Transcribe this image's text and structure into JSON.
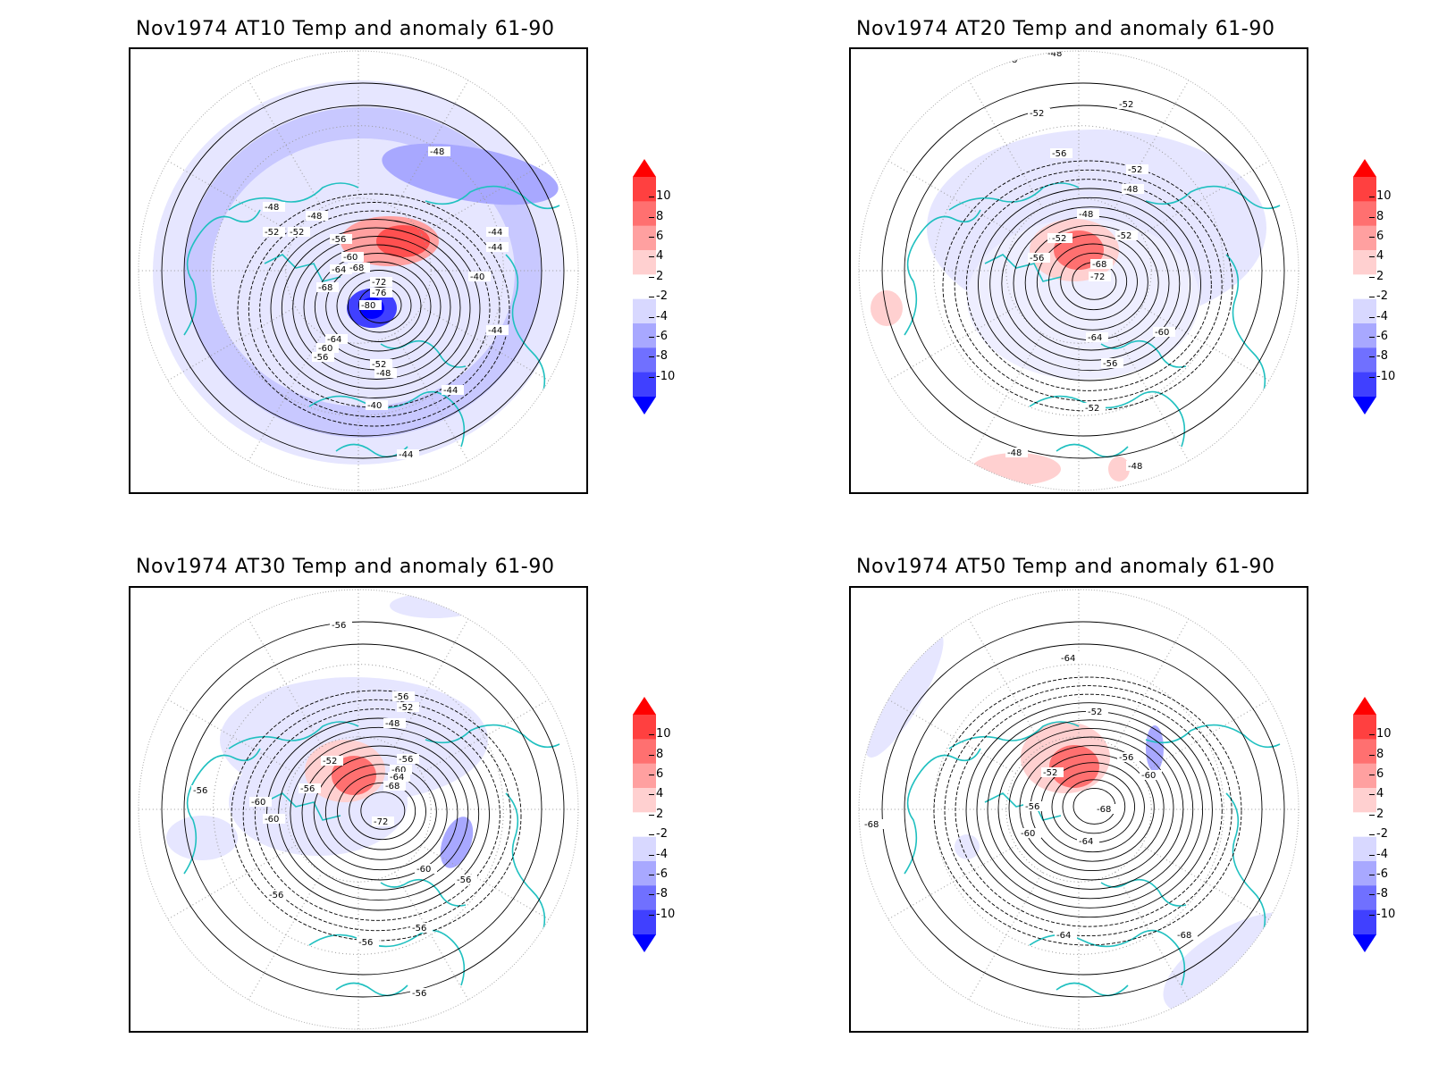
{
  "figure": {
    "panels": [
      {
        "id": "at10",
        "title": "Nov1974 AT10 Temp and anomaly 61-90",
        "contour_labels": [
          "-48",
          "-48",
          "-52",
          "-48",
          "-52",
          "-56",
          "-60",
          "-64",
          "-68",
          "-68",
          "-72",
          "-76",
          "-80",
          "-64",
          "-60",
          "-56",
          "-52",
          "-48",
          "-44",
          "-44",
          "-40",
          "-44",
          "-44",
          "-40",
          "-44"
        ]
      },
      {
        "id": "at20",
        "title": "Nov1974 AT20 Temp and anomaly 61-90",
        "contour_labels": [
          "-48",
          "-48",
          "-52",
          "-52",
          "-56",
          "-52",
          "-48",
          "-48",
          "-52",
          "-52",
          "-56",
          "-68",
          "-72",
          "-52",
          "-64",
          "-60",
          "-56",
          "-52",
          "-48",
          "-48"
        ]
      },
      {
        "id": "at30",
        "title": "Nov1974 AT30 Temp and anomaly 61-90",
        "contour_labels": [
          "-56",
          "-56",
          "-52",
          "-48",
          "-52",
          "-56",
          "-60",
          "-64",
          "-56",
          "-68",
          "-72",
          "-56",
          "-60",
          "-60",
          "-60",
          "-56",
          "-56",
          "-56",
          "-56",
          "-56"
        ]
      },
      {
        "id": "at50",
        "title": "Nov1974 AT50 Temp and anomaly 61-90",
        "contour_labels": [
          "-64",
          "-68",
          "-52",
          "-56",
          "-60",
          "-52",
          "-56",
          "-60",
          "-68",
          "-64",
          "-68",
          "-64",
          "-68"
        ]
      }
    ],
    "colorbar": {
      "labels": [
        "10",
        "8",
        "6",
        "4",
        "2",
        "-2",
        "-4",
        "-6",
        "-8",
        "-10"
      ],
      "colors": [
        "#ff0000",
        "#ff4040",
        "#ff7070",
        "#ffa0a0",
        "#ffd0d0",
        "#ffffff",
        "#d8d8ff",
        "#a8a8ff",
        "#7070ff",
        "#4040ff",
        "#0000ff"
      ]
    }
  }
}
